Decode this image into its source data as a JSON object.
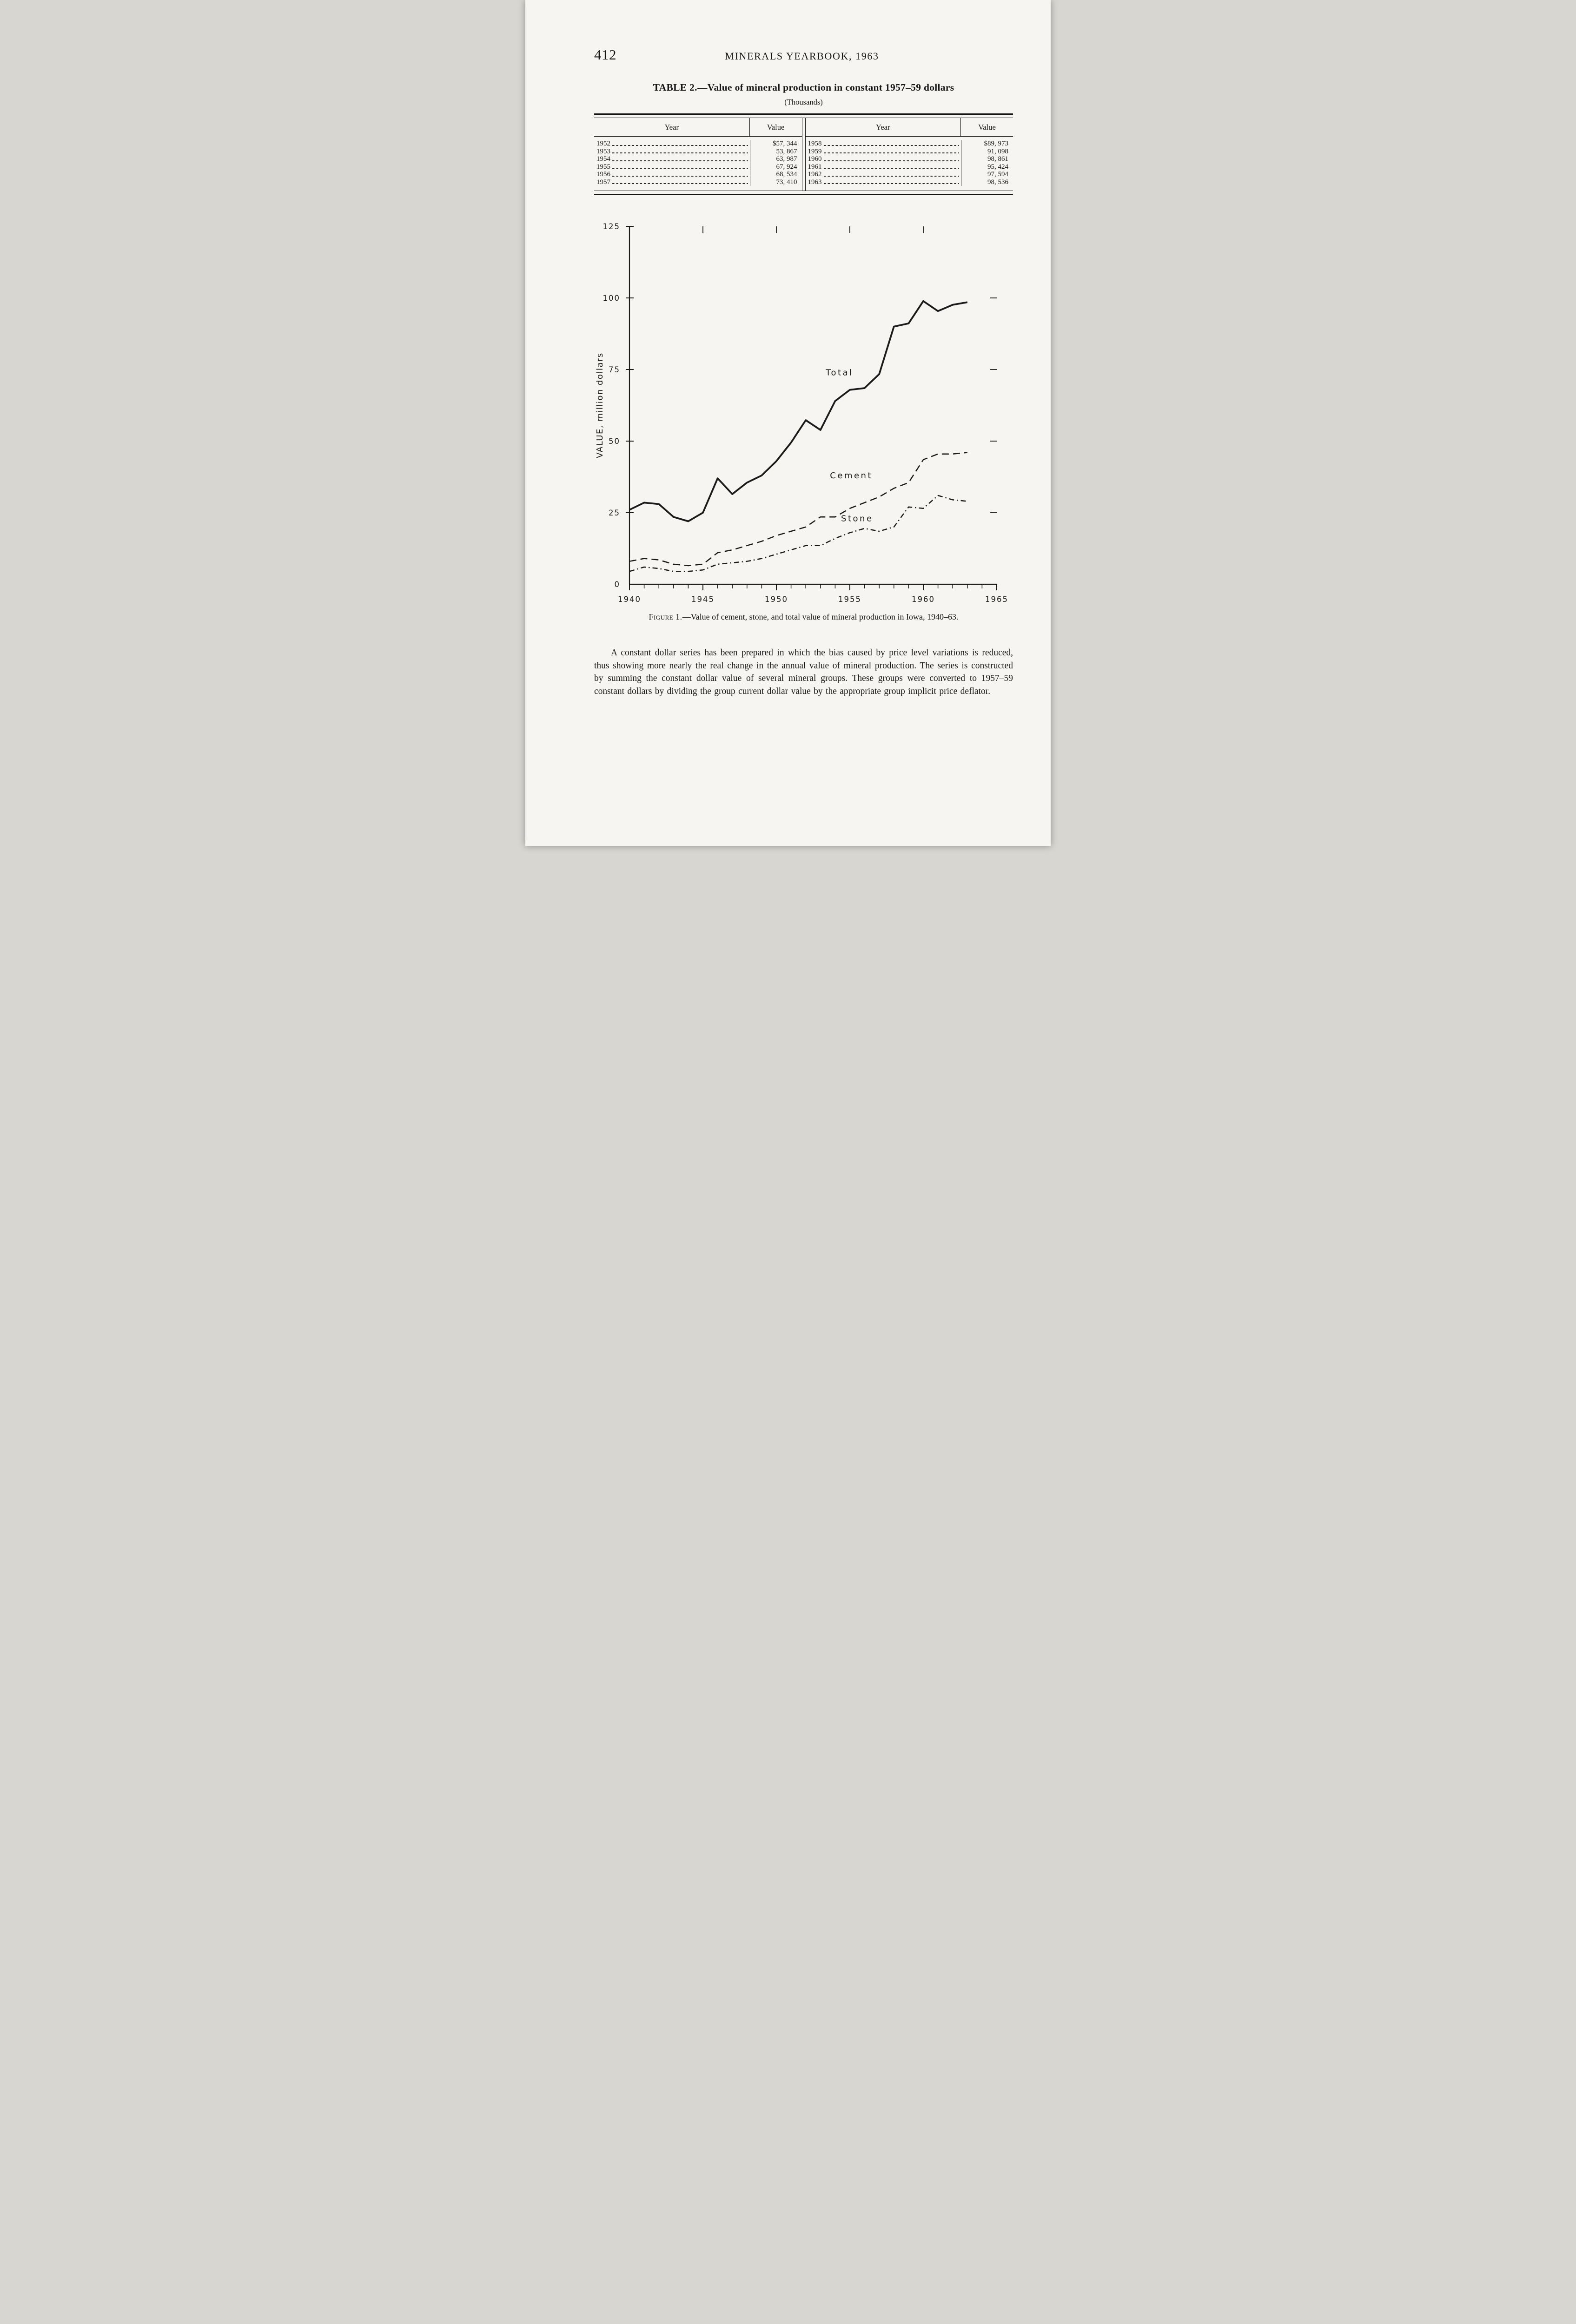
{
  "page": {
    "page_number": "412",
    "running_header": "MINERALS YEARBOOK, 1963"
  },
  "table": {
    "title": "TABLE 2.—Value of mineral production in constant 1957–59 dollars",
    "subtitle": "(Thousands)",
    "columns": [
      "Year",
      "Value",
      "Year",
      "Value"
    ],
    "left_rows": [
      {
        "year": "1952",
        "value": "$57, 344"
      },
      {
        "year": "1953",
        "value": "53, 867"
      },
      {
        "year": "1954",
        "value": "63, 987"
      },
      {
        "year": "1955",
        "value": "67, 924"
      },
      {
        "year": "1956",
        "value": "68, 534"
      },
      {
        "year": "1957",
        "value": "73, 410"
      }
    ],
    "right_rows": [
      {
        "year": "1958",
        "value": "$89, 973"
      },
      {
        "year": "1959",
        "value": "91, 098"
      },
      {
        "year": "1960",
        "value": "98, 861"
      },
      {
        "year": "1961",
        "value": "95, 424"
      },
      {
        "year": "1962",
        "value": "97, 594"
      },
      {
        "year": "1963",
        "value": "98, 536"
      }
    ]
  },
  "figure": {
    "caption_label": "Figure 1.",
    "caption_text": "—Value of cement, stone, and total value of mineral production in Iowa, 1940–63."
  },
  "chart_data": {
    "type": "line",
    "title": "",
    "xlabel": "",
    "ylabel": "VALUE, million dollars",
    "xlim": [
      1940,
      1965
    ],
    "ylim": [
      0,
      125
    ],
    "xticks": [
      1940,
      1945,
      1950,
      1955,
      1960,
      1965
    ],
    "yticks": [
      0,
      25,
      50,
      75,
      100,
      125
    ],
    "grid": false,
    "legend_position": "inline-labels",
    "x": [
      1940,
      1941,
      1942,
      1943,
      1944,
      1945,
      1946,
      1947,
      1948,
      1949,
      1950,
      1951,
      1952,
      1953,
      1954,
      1955,
      1956,
      1957,
      1958,
      1959,
      1960,
      1961,
      1962,
      1963
    ],
    "series": [
      {
        "name": "Total",
        "style": "solid",
        "values": [
          26,
          28.5,
          28,
          23.5,
          22,
          25,
          37,
          31.5,
          35.5,
          38,
          43,
          49.5,
          57.3,
          53.9,
          64.0,
          67.9,
          68.5,
          73.4,
          90.0,
          91.1,
          98.9,
          95.4,
          97.6,
          98.5
        ]
      },
      {
        "name": "Cement",
        "style": "dashed",
        "values": [
          8,
          9,
          8.5,
          7,
          6.5,
          7,
          11,
          12,
          13.5,
          15,
          17,
          18.5,
          20,
          23.5,
          23.5,
          26.5,
          28.5,
          30.5,
          33.5,
          35.5,
          43.5,
          45.5,
          45.5,
          46
        ]
      },
      {
        "name": "Stone",
        "style": "dashdot",
        "values": [
          4.5,
          6,
          5.5,
          4.5,
          4.5,
          5,
          7,
          7.5,
          8,
          9,
          10.5,
          12,
          13.5,
          13.5,
          16,
          18,
          19.5,
          18.5,
          20,
          27,
          26.5,
          31,
          29.5,
          29
        ]
      }
    ]
  },
  "body": {
    "paragraph": "A constant dollar series has been prepared in which the bias caused by price level variations is reduced, thus showing more nearly the real change in the annual value of mineral production.  The series is constructed by summing the constant dollar value of several mineral groups.  These groups were converted to 1957–59 constant dollars by dividing the group current dollar value by the appropriate group implicit price deflator."
  }
}
